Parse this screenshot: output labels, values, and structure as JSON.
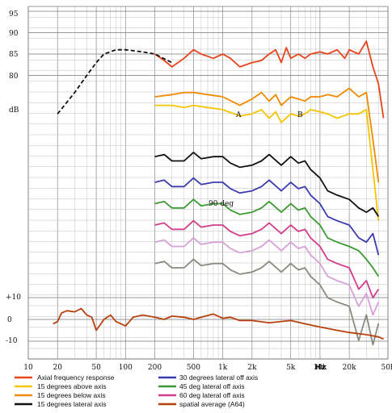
{
  "chart_data": {
    "type": "line",
    "xscale": "log",
    "xlim": [
      10,
      50000
    ],
    "x_ticks": [
      {
        "v": 10,
        "label": "10"
      },
      {
        "v": 20,
        "label": "20"
      },
      {
        "v": 50,
        "label": "50"
      },
      {
        "v": 100,
        "label": "100"
      },
      {
        "v": 200,
        "label": "200"
      },
      {
        "v": 500,
        "label": "500"
      },
      {
        "v": 1000,
        "label": "1k"
      },
      {
        "v": 2000,
        "label": "2k"
      },
      {
        "v": 5000,
        "label": "5k"
      },
      {
        "v": 10000,
        "label": "10k"
      },
      {
        "v": 20000,
        "label": "20k"
      },
      {
        "v": 50000,
        "label": "50k"
      }
    ],
    "x_unit_label": "Hz",
    "y_ticks_top": [
      "95",
      "90",
      "85",
      "80"
    ],
    "y_label": "dB",
    "y_ticks_bottom": [
      "+10",
      "0",
      "-10"
    ],
    "grid": true,
    "annotations": [
      "A",
      "B",
      "90 deg"
    ],
    "legend": [
      {
        "label": "Axial frequency response",
        "color": "#e8441c"
      },
      {
        "label": "15 degrees above axis",
        "color": "#f7c400"
      },
      {
        "label": "15 degrees below axis",
        "color": "#f08a00"
      },
      {
        "label": "15 degrees lateral axis",
        "color": "#111111"
      },
      {
        "label": "30 degrees lateral off axis",
        "color": "#3b3bb0"
      },
      {
        "label": "45 deg lateral off axis",
        "color": "#3c9a32"
      },
      {
        "label": "60 deg lateral off axis",
        "color": "#d43c8c"
      },
      {
        "label": "spatial average (A64)",
        "color": "#b8400c"
      }
    ],
    "series": [
      {
        "color": "#e8441c",
        "offset": 85,
        "x": [
          200,
          250,
          300,
          400,
          500,
          600,
          800,
          1000,
          1200,
          1500,
          2000,
          2500,
          3000,
          3500,
          4000,
          4500,
          5000,
          6000,
          7000,
          8000,
          10000,
          12000,
          15000,
          18000,
          20000,
          25000,
          30000,
          35000,
          40000,
          45000
        ],
        "y": [
          85,
          83.5,
          82,
          84,
          86,
          85,
          84,
          85,
          84,
          82,
          83,
          83.5,
          85,
          86,
          83,
          86.5,
          84,
          85,
          84,
          85,
          85.5,
          85,
          86,
          84,
          86,
          85,
          88,
          82,
          78,
          70
        ]
      },
      {
        "color": "#f08a00",
        "dashed": true,
        "x": [
          20,
          30,
          40,
          50,
          60,
          80,
          100,
          150,
          200,
          300
        ],
        "y": [
          71,
          76,
          80,
          83,
          85,
          86,
          86,
          85.5,
          85,
          83
        ]
      },
      {
        "color": "#f08a00",
        "offset": 75,
        "x": [
          200,
          300,
          400,
          500,
          700,
          1000,
          1500,
          2000,
          2500,
          3000,
          3500,
          4000,
          5000,
          6000,
          7000,
          8000,
          10000,
          12000,
          15000,
          20000,
          25000,
          30000,
          35000,
          40000
        ],
        "y": [
          75,
          75.5,
          76,
          76,
          75.5,
          75,
          73,
          74.5,
          76,
          74,
          75.5,
          73,
          75,
          74.5,
          74,
          75,
          75,
          75.5,
          75,
          77,
          75,
          76,
          65,
          55
        ]
      },
      {
        "color": "#f7c400",
        "offset": 73,
        "x": [
          200,
          300,
          400,
          500,
          700,
          1000,
          1500,
          2000,
          2500,
          3000,
          3500,
          4000,
          5000,
          6000,
          7000,
          8000,
          10000,
          12000,
          15000,
          20000,
          25000,
          30000,
          35000,
          40000
        ],
        "y": [
          73,
          73,
          72.5,
          73,
          72.5,
          72,
          70.5,
          71,
          72,
          70,
          71.5,
          69,
          71,
          70.5,
          71,
          72,
          71.5,
          71,
          70,
          71,
          71,
          72,
          58,
          46
        ]
      },
      {
        "color": "#111111",
        "offset": 61,
        "x": [
          200,
          250,
          300,
          400,
          500,
          600,
          800,
          1000,
          1200,
          1500,
          2000,
          2500,
          3000,
          4000,
          5000,
          6000,
          7000,
          8000,
          10000,
          12000,
          15000,
          20000,
          25000,
          30000,
          35000,
          40000
        ],
        "y": [
          61,
          61.5,
          60,
          60,
          62,
          60.5,
          61,
          61,
          59.5,
          58.5,
          59,
          60,
          61.5,
          59,
          61,
          59.5,
          60,
          58,
          56,
          53,
          52,
          51,
          49,
          48,
          49,
          47
        ]
      },
      {
        "color": "#3b3bb0",
        "offset": 55,
        "x": [
          200,
          250,
          300,
          400,
          500,
          600,
          800,
          1000,
          1200,
          1500,
          2000,
          2500,
          3000,
          4000,
          5000,
          6000,
          7000,
          8000,
          10000,
          12000,
          15000,
          20000,
          25000,
          30000,
          35000,
          40000
        ],
        "y": [
          55,
          55.5,
          54,
          54,
          56,
          54.5,
          55,
          55,
          53.5,
          52.5,
          53,
          54,
          55.5,
          53,
          55,
          53.5,
          54,
          52,
          50,
          47,
          46,
          45,
          42,
          41,
          43,
          38
        ]
      },
      {
        "color": "#3c9a32",
        "offset": 50,
        "x": [
          200,
          250,
          300,
          400,
          500,
          600,
          800,
          1000,
          1200,
          1500,
          2000,
          2500,
          3000,
          4000,
          5000,
          6000,
          7000,
          8000,
          10000,
          12000,
          15000,
          20000,
          25000,
          30000,
          35000,
          40000
        ],
        "y": [
          50,
          50.5,
          49,
          49,
          51,
          49.5,
          50,
          50,
          48.5,
          47.5,
          48,
          49,
          50.5,
          48,
          50,
          48.5,
          49,
          47,
          45,
          42,
          41,
          40,
          39,
          37,
          35,
          33
        ]
      },
      {
        "color": "#d43c8c",
        "offset": 45,
        "x": [
          200,
          250,
          300,
          400,
          500,
          600,
          800,
          1000,
          1200,
          1500,
          2000,
          2500,
          3000,
          4000,
          5000,
          6000,
          7000,
          8000,
          10000,
          12000,
          15000,
          20000,
          25000,
          30000,
          35000,
          40000
        ],
        "y": [
          45,
          45.5,
          44,
          44,
          46,
          44.5,
          45,
          45,
          43.5,
          42.5,
          43,
          44,
          45.5,
          43,
          45,
          43.5,
          44,
          42,
          40,
          37,
          36,
          35,
          30,
          32,
          28,
          30
        ]
      },
      {
        "color": "#d8a0d8",
        "offset": 41,
        "x": [
          200,
          250,
          300,
          400,
          500,
          600,
          800,
          1000,
          1200,
          1500,
          2000,
          2500,
          3000,
          4000,
          5000,
          6000,
          7000,
          8000,
          10000,
          12000,
          15000,
          20000,
          25000,
          30000,
          35000,
          40000
        ],
        "y": [
          41,
          41.5,
          40,
          40,
          42,
          40.5,
          41,
          41,
          39.5,
          38.5,
          39,
          40,
          41.5,
          39,
          41,
          39.5,
          40,
          38,
          36,
          33,
          32,
          31,
          26,
          29,
          24,
          27
        ]
      },
      {
        "color": "#8a8a80",
        "offset": 36,
        "x": [
          200,
          250,
          300,
          400,
          500,
          600,
          800,
          1000,
          1200,
          1500,
          2000,
          2500,
          3000,
          4000,
          5000,
          6000,
          7000,
          8000,
          10000,
          12000,
          15000,
          20000,
          25000,
          30000,
          35000,
          40000
        ],
        "y": [
          36,
          36.5,
          35,
          35,
          37,
          35.5,
          36,
          36,
          34.5,
          33.5,
          34,
          35,
          36.5,
          34,
          36,
          34.5,
          35,
          33,
          31,
          28,
          27,
          26,
          18,
          24,
          17,
          22
        ]
      },
      {
        "color": "#b8400c",
        "zero_row": true,
        "x": [
          18,
          20,
          22,
          25,
          30,
          35,
          40,
          45,
          50,
          60,
          70,
          80,
          100,
          120,
          150,
          200,
          250,
          300,
          400,
          500,
          600,
          800,
          1000,
          1200,
          1500,
          2000,
          3000,
          5000,
          7000,
          10000,
          15000,
          20000,
          30000,
          40000,
          45000
        ],
        "y": [
          -2,
          -1,
          3,
          4,
          3.5,
          5,
          2,
          1,
          -5,
          0,
          2,
          -1,
          -3,
          1,
          2,
          1,
          0,
          1.5,
          1,
          0,
          1,
          2.5,
          0.5,
          1,
          -0.5,
          -0.5,
          -1.5,
          -0.5,
          -2,
          -3.5,
          -5,
          -6,
          -7,
          -8,
          -9
        ]
      }
    ]
  }
}
